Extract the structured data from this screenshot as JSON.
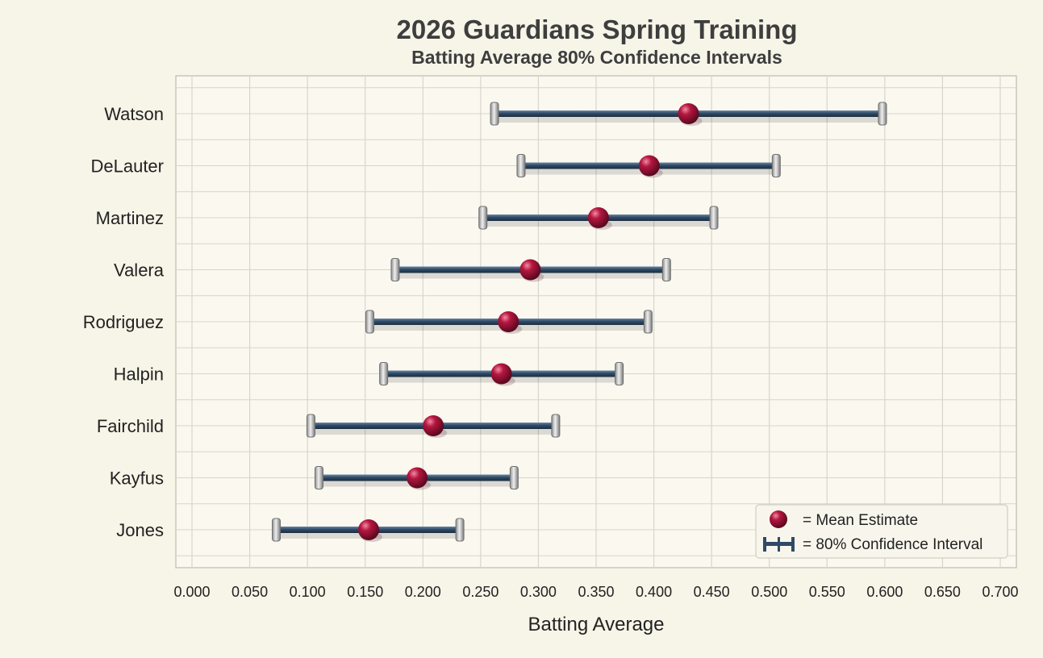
{
  "chart_data": {
    "type": "interval",
    "title": "2026 Guardians Spring Training",
    "subtitle": "Batting Average 80% Confidence Intervals",
    "xlabel": "Batting Average",
    "ylabel": "",
    "xlim": [
      0.0,
      0.7
    ],
    "xticks": [
      "0.000",
      "0.050",
      "0.100",
      "0.150",
      "0.200",
      "0.250",
      "0.300",
      "0.350",
      "0.400",
      "0.450",
      "0.500",
      "0.550",
      "0.600",
      "0.650",
      "0.700"
    ],
    "grid": true,
    "legend_position": "bottom-right",
    "legend": {
      "mean_label": "= Mean Estimate",
      "ci_label": "= 80% Confidence Interval"
    },
    "colors": {
      "interval": "#2f4a66",
      "mean": "#9b1035",
      "cap": "#b8b8b8",
      "grid": "#d8d6cc",
      "background": "#f7f4e8"
    },
    "players": [
      {
        "name": "Watson",
        "low": 0.262,
        "mean": 0.43,
        "high": 0.598
      },
      {
        "name": "DeLauter",
        "low": 0.285,
        "mean": 0.396,
        "high": 0.506
      },
      {
        "name": "Martinez",
        "low": 0.252,
        "mean": 0.352,
        "high": 0.452
      },
      {
        "name": "Valera",
        "low": 0.176,
        "mean": 0.293,
        "high": 0.411
      },
      {
        "name": "Rodriguez",
        "low": 0.154,
        "mean": 0.274,
        "high": 0.395
      },
      {
        "name": "Halpin",
        "low": 0.166,
        "mean": 0.268,
        "high": 0.37
      },
      {
        "name": "Fairchild",
        "low": 0.103,
        "mean": 0.209,
        "high": 0.315
      },
      {
        "name": "Kayfus",
        "low": 0.11,
        "mean": 0.195,
        "high": 0.279
      },
      {
        "name": "Jones",
        "low": 0.073,
        "mean": 0.153,
        "high": 0.232
      }
    ]
  }
}
